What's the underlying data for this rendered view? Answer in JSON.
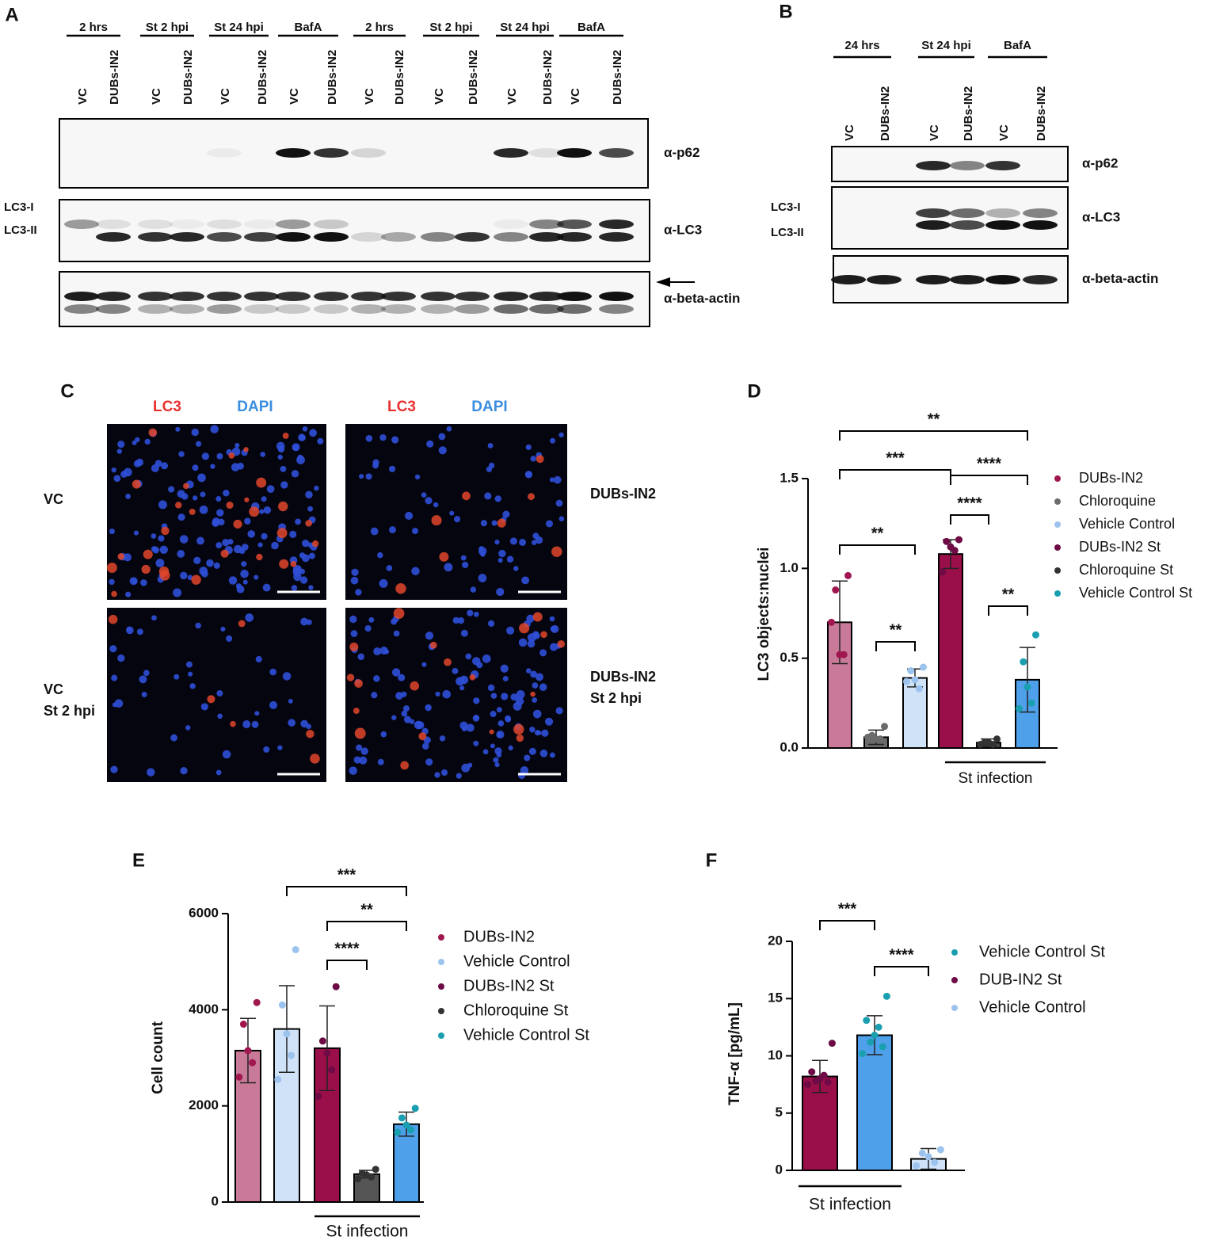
{
  "panel_letters": [
    "A",
    "B",
    "C",
    "D",
    "E",
    "F"
  ],
  "blot_a": {
    "groups": [
      "2 hrs",
      "St 2 hpi",
      "St 24 hpi",
      "BafA",
      "2 hrs",
      "St 2 hpi",
      "St 24 hpi",
      "BafA"
    ],
    "lanes": [
      "VC",
      "DUBs-IN2",
      "VC",
      "DUBs-IN2",
      "VC",
      "DUBs-IN2",
      "VC",
      "DUBs-IN2",
      "VC",
      "DUBs-IN2",
      "VC",
      "DUBs-IN2",
      "VC",
      "DUBs-IN2",
      "VC",
      "DUBs-IN2"
    ],
    "antibodies": [
      "α-p62",
      "α-LC3",
      "α-beta-actin"
    ],
    "lc3_labels": [
      "LC3-I",
      "LC3-II"
    ]
  },
  "blot_b": {
    "groups": [
      "24 hrs",
      "St 24 hpi",
      "BafA"
    ],
    "lanes": [
      "VC",
      "DUBs-IN2",
      "VC",
      "DUBs-IN2",
      "VC",
      "DUBs-IN2"
    ],
    "antibodies": [
      "α-p62",
      "α-LC3",
      "α-beta-actin"
    ],
    "lc3_labels": [
      "LC3-I",
      "LC3-II"
    ]
  },
  "microscopy": {
    "stains": [
      {
        "name": "LC3",
        "color": "#e8312f"
      },
      {
        "name": "DAPI",
        "color": "#3a8ee0"
      }
    ],
    "conditions": [
      [
        "VC"
      ],
      [
        "DUBs-IN2"
      ],
      [
        "VC",
        "St 2 hpi"
      ],
      [
        "DUBs-IN2",
        "St 2 hpi"
      ]
    ]
  },
  "chart_data": [
    {
      "type": "bar",
      "ylabel": "LC3 objects:nuclei",
      "ylim": [
        0,
        1.5
      ],
      "yticks": [
        {
          "value": 0,
          "label": "0.0"
        },
        0.5,
        {
          "value": 1,
          "label": "1.0"
        },
        1.5
      ],
      "series": [
        {
          "name": "DUBs-IN2",
          "color": "#c97a98",
          "point_color": "#a0174f",
          "values": [
            0.7
          ],
          "errors": [
            0.23
          ],
          "points": [
            0.96,
            0.88,
            0.52,
            0.52,
            0.7
          ]
        },
        {
          "name": "Chloroquine",
          "color": "#6b6b6b",
          "point_color": "#6b6b6b",
          "values": [
            0.06
          ],
          "errors": [
            0.04
          ],
          "points": [
            0.12,
            0.07,
            0.05,
            0.05,
            0.06
          ]
        },
        {
          "name": "Vehicle Control",
          "color": "#cfe2f8",
          "point_color": "#9cc3ee",
          "values": [
            0.39
          ],
          "errors": [
            0.05
          ],
          "points": [
            0.45,
            0.43,
            0.38,
            0.33,
            0.37
          ]
        },
        {
          "name": "DUBs-IN2 St",
          "color": "#9a0f4a",
          "point_color": "#6e0a45",
          "values": [
            1.08
          ],
          "errors": [
            0.08
          ],
          "points": [
            1.16,
            1.15,
            1.12,
            1.1,
            0.98
          ]
        },
        {
          "name": "Chloroquine St",
          "color": "#444444",
          "point_color": "#333333",
          "values": [
            0.03
          ],
          "errors": [
            0.02
          ],
          "points": [
            0.05,
            0.03,
            0.03,
            0.02,
            0.02
          ]
        },
        {
          "name": "Vehicle Control St",
          "color": "#4ea0ea",
          "point_color": "#1a9fb0",
          "values": [
            0.38
          ],
          "errors": [
            0.18
          ],
          "points": [
            0.63,
            0.48,
            0.34,
            0.25,
            0.22
          ]
        }
      ],
      "annotations": [
        "**",
        "***",
        "****",
        "****",
        "**",
        "**",
        "**"
      ],
      "group_label": "St infection"
    },
    {
      "type": "bar",
      "ylabel": "Cell count",
      "ylim": [
        0,
        6000
      ],
      "yticks": [
        0,
        2000,
        4000,
        6000
      ],
      "series": [
        {
          "name": "DUBs-IN2",
          "color": "#c97a98",
          "point_color": "#a0174f",
          "values": [
            3150
          ],
          "errors": [
            670
          ],
          "points": [
            4150,
            3700,
            3150,
            2900,
            2600
          ]
        },
        {
          "name": "Vehicle Control",
          "color": "#cfe2f8",
          "point_color": "#9cc3ee",
          "values": [
            3600
          ],
          "errors": [
            900
          ],
          "points": [
            5250,
            4100,
            3500,
            3050,
            2550
          ]
        },
        {
          "name": "DUBs-IN2 St",
          "color": "#9a0f4a",
          "point_color": "#6e0a45",
          "values": [
            3200
          ],
          "errors": [
            880
          ],
          "points": [
            4480,
            3350,
            3100,
            2750,
            2200
          ]
        },
        {
          "name": "Chloroquine St",
          "color": "#555555",
          "point_color": "#333333",
          "values": [
            580
          ],
          "errors": [
            80
          ],
          "points": [
            680,
            600,
            560,
            520,
            480
          ]
        },
        {
          "name": "Vehicle Control St",
          "color": "#4ea0ea",
          "point_color": "#1a9fb0",
          "values": [
            1620
          ],
          "errors": [
            250
          ],
          "points": [
            1950,
            1750,
            1600,
            1500,
            1450
          ]
        }
      ],
      "annotations": [
        "***",
        "**",
        "****"
      ],
      "group_label": "St infection"
    },
    {
      "type": "bar",
      "ylabel": "TNF-α [pg/mL]",
      "ylim": [
        0,
        20
      ],
      "yticks": [
        0,
        5,
        10,
        15,
        20
      ],
      "series": [
        {
          "name": "Vehicle Control St",
          "color": "#4ea0ea",
          "point_color": "#1a9fb0",
          "values": [
            11.8
          ],
          "errors": [
            1.7
          ],
          "points": [
            15.2,
            13.1,
            12.5,
            11.8,
            11.2,
            10.8,
            10.2
          ]
        },
        {
          "name": "DUB-IN2 St",
          "color": "#9a0f4a",
          "point_color": "#6e0a45",
          "values": [
            8.2
          ],
          "errors": [
            1.4
          ],
          "points": [
            11.1,
            8.6,
            8.3,
            8.0,
            7.8,
            7.7,
            7.5
          ]
        },
        {
          "name": "Vehicle Control",
          "color": "#cfe2f8",
          "point_color": "#9cc3ee",
          "values": [
            1.0
          ],
          "errors": [
            0.9
          ],
          "points": [
            1.8,
            1.5,
            1.2,
            0.7,
            0.4
          ]
        }
      ],
      "annotations": [
        "***",
        "****"
      ],
      "group_label": "St infection"
    }
  ]
}
